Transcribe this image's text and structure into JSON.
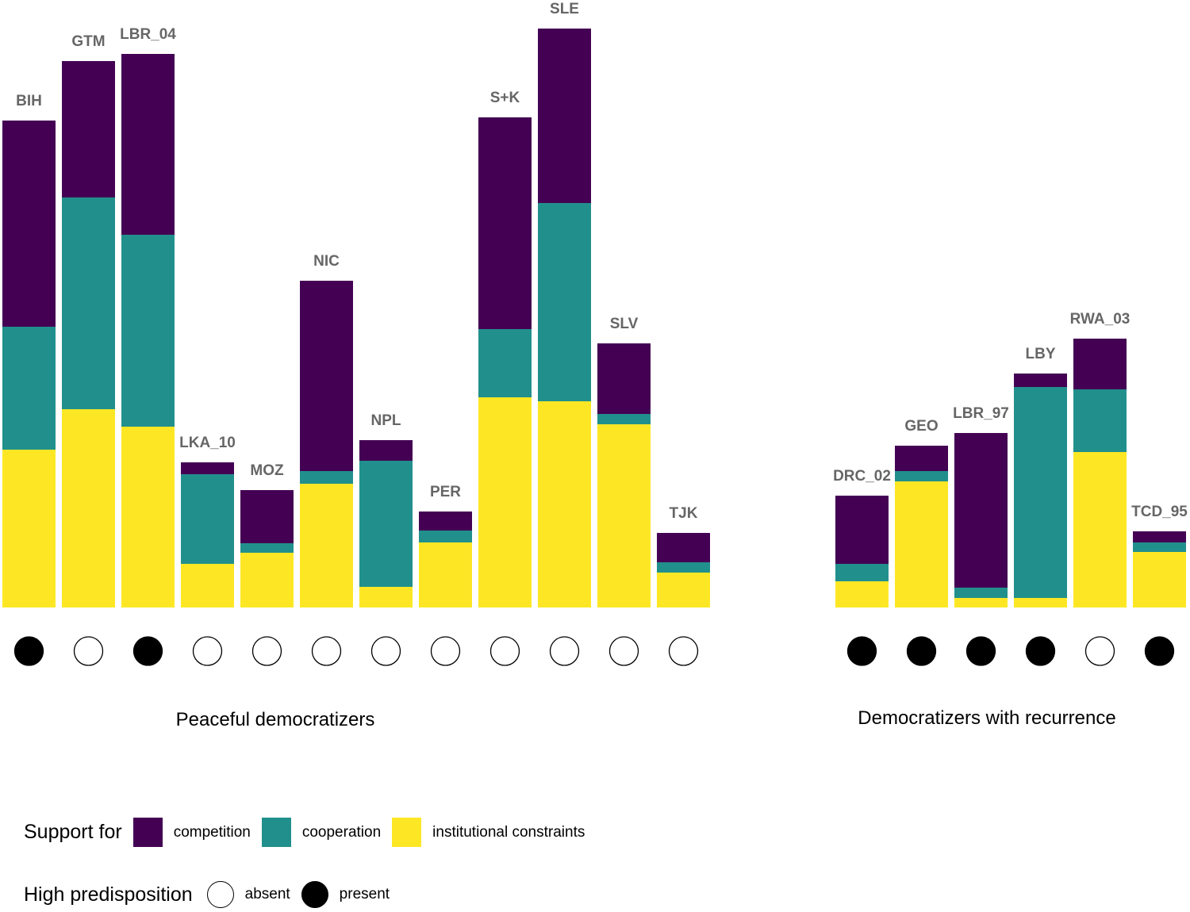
{
  "chart_data": {
    "type": "bar",
    "stacked": true,
    "title": "",
    "xlabel": "",
    "ylabel": "",
    "y_axis_shown": false,
    "value_units": "relative (no axis shown; bar-height units)",
    "ylim": [
      0,
      740
    ],
    "series_order_bottom_to_top": [
      "institutional constraints",
      "cooperation",
      "competition"
    ],
    "colors": {
      "competition": "#440154",
      "cooperation": "#21908C",
      "institutional constraints": "#FDE725",
      "predisposition_present": "#000000",
      "predisposition_absent": "#ffffff",
      "label_text": "#666666"
    },
    "groups": [
      {
        "title": "Peaceful democratizers",
        "bars": [
          {
            "label": "BIH",
            "institutional": 199,
            "cooperation": 155,
            "competition": 260,
            "high_predisposition": "present"
          },
          {
            "label": "GTM",
            "institutional": 250,
            "cooperation": 267,
            "competition": 172,
            "high_predisposition": "absent"
          },
          {
            "label": "LBR_04",
            "institutional": 228,
            "cooperation": 242,
            "competition": 228,
            "high_predisposition": "present"
          },
          {
            "label": "LKA_10",
            "institutional": 55,
            "cooperation": 113,
            "competition": 15,
            "high_predisposition": "absent"
          },
          {
            "label": "MOZ",
            "institutional": 69,
            "cooperation": 12,
            "competition": 67,
            "high_predisposition": "absent"
          },
          {
            "label": "NIC",
            "institutional": 156,
            "cooperation": 16,
            "competition": 240,
            "high_predisposition": "absent"
          },
          {
            "label": "NPL",
            "institutional": 26,
            "cooperation": 159,
            "competition": 26,
            "high_predisposition": "absent"
          },
          {
            "label": "PER",
            "institutional": 82,
            "cooperation": 15,
            "competition": 24,
            "high_predisposition": "absent"
          },
          {
            "label": "S+K",
            "institutional": 265,
            "cooperation": 86,
            "competition": 267,
            "high_predisposition": "absent"
          },
          {
            "label": "SLE",
            "institutional": 260,
            "cooperation": 250,
            "competition": 220,
            "high_predisposition": "absent"
          },
          {
            "label": "SLV",
            "institutional": 231,
            "cooperation": 13,
            "competition": 89,
            "high_predisposition": "absent"
          },
          {
            "label": "TJK",
            "institutional": 44,
            "cooperation": 13,
            "competition": 37,
            "high_predisposition": "absent"
          }
        ]
      },
      {
        "title": "Democratizers with recurrence",
        "bars": [
          {
            "label": "DRC_02",
            "institutional": 33,
            "cooperation": 22,
            "competition": 86,
            "high_predisposition": "present"
          },
          {
            "label": "GEO",
            "institutional": 159,
            "cooperation": 13,
            "competition": 32,
            "high_predisposition": "present"
          },
          {
            "label": "LBR_97",
            "institutional": 12,
            "cooperation": 13,
            "competition": 195,
            "high_predisposition": "present"
          },
          {
            "label": "LBY",
            "institutional": 12,
            "cooperation": 266,
            "competition": 17,
            "high_predisposition": "present"
          },
          {
            "label": "RWA_03",
            "institutional": 196,
            "cooperation": 79,
            "competition": 64,
            "high_predisposition": "absent"
          },
          {
            "label": "TCD_95",
            "institutional": 70,
            "cooperation": 12,
            "competition": 14,
            "high_predisposition": "present"
          }
        ]
      }
    ],
    "legend": {
      "placement": "bottom-left",
      "fill": {
        "title": "Support for",
        "items": [
          {
            "key": "competition",
            "label": "competition"
          },
          {
            "key": "cooperation",
            "label": "cooperation"
          },
          {
            "key": "institutional constraints",
            "label": "institutional constraints"
          }
        ]
      },
      "shape": {
        "title": "High predisposition",
        "items": [
          {
            "key": "absent",
            "label": "absent"
          },
          {
            "key": "present",
            "label": "present"
          }
        ]
      }
    }
  }
}
